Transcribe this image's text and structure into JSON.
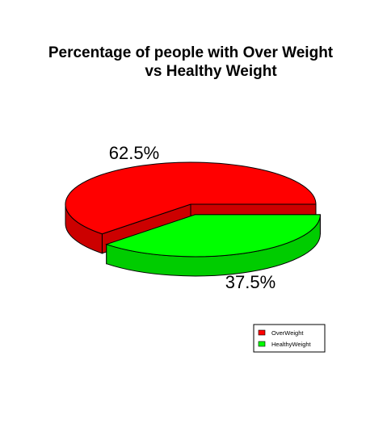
{
  "chart_data": {
    "type": "pie",
    "style": "3d-exploded",
    "title_lines": [
      "Percentage of people with Over Weight",
      "vs Healthy Weight"
    ],
    "categories": [
      "OverWeight",
      "HealthyWeight"
    ],
    "values": [
      62.5,
      37.5
    ],
    "labels": [
      "62.5%",
      "37.5%"
    ],
    "colors": [
      "#ff0000",
      "#00ff00"
    ],
    "side_colors": [
      "#cc0000",
      "#00cc00"
    ],
    "legend": {
      "placement": "bottom-right",
      "entries": [
        "OverWeight",
        "HealthyWeight"
      ]
    }
  }
}
